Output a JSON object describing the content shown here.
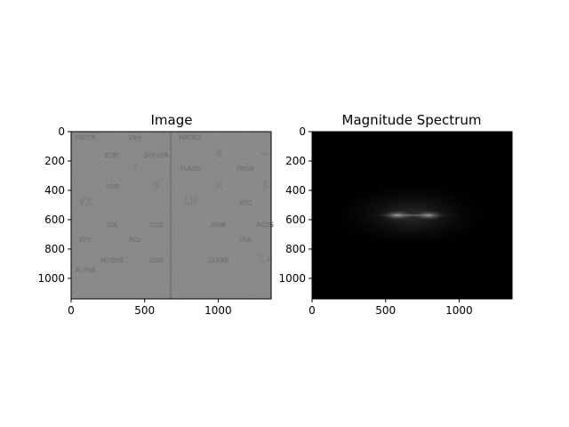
{
  "chart_data": [
    {
      "type": "heatmap",
      "title": "Image",
      "colormap": "gray",
      "xlim": [
        0,
        1360
      ],
      "ylim": [
        1140,
        0
      ],
      "xticks": [
        0,
        500,
        1000
      ],
      "xtick_labels": [
        "0",
        "500",
        "1000"
      ],
      "yticks": [
        0,
        200,
        400,
        600,
        800,
        1000
      ],
      "ytick_labels": [
        "0",
        "200",
        "400",
        "600",
        "800",
        "1000"
      ],
      "grid": false,
      "visible_text": [
        "ENTER",
        "x≷y",
        "MATRIX",
        "STAT",
        "SOLVER",
        "9",
        "÷",
        "7",
        "FLAGS",
        "PROB",
        "6",
        "×",
        "4",
        "LOG",
        "LN",
        "XEQ",
        "√x",
        "ASIN",
        "ACOS",
        "SIN",
        "COS",
        "TAN",
        "STO",
        "RCL",
        "R↓",
        "MODES",
        "DISP",
        "CLEAR",
        "ALPHA"
      ]
    },
    {
      "type": "heatmap",
      "title": "Magnitude Spectrum",
      "colormap": "gray",
      "xlim": [
        0,
        1360
      ],
      "ylim": [
        1140,
        0
      ],
      "xticks": [
        0,
        500,
        1000
      ],
      "xtick_labels": [
        "0",
        "500",
        "1000"
      ],
      "yticks": [
        0,
        200,
        400,
        600,
        800,
        1000
      ],
      "ytick_labels": [
        "0",
        "200",
        "400",
        "600",
        "800",
        "1000"
      ],
      "grid": false,
      "spectrum_peak": {
        "x": 680,
        "y": 570
      }
    }
  ]
}
